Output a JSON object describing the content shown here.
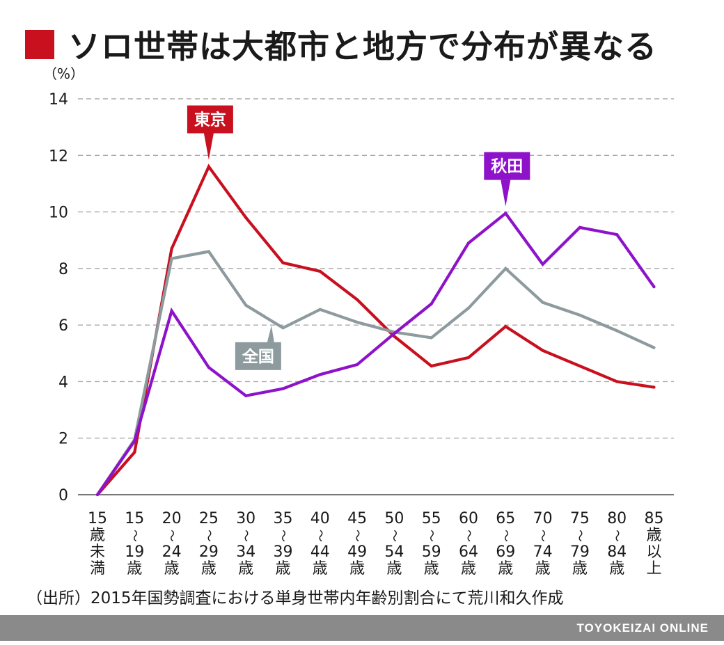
{
  "header": {
    "title": "ソロ世帯は大都市と地方で分布が異なる",
    "accent_color": "#c8101e"
  },
  "chart_data": {
    "type": "line",
    "ylabel": "（%）",
    "ylim": [
      0,
      14
    ],
    "yticks": [
      "0",
      "2",
      "4",
      "6",
      "8",
      "10",
      "12",
      "14"
    ],
    "grid": "horizontal-dashed",
    "categories": [
      [
        "15",
        "歳",
        "未",
        "満"
      ],
      [
        "15",
        "〜",
        "19",
        "歳"
      ],
      [
        "20",
        "〜",
        "24",
        "歳"
      ],
      [
        "25",
        "〜",
        "29",
        "歳"
      ],
      [
        "30",
        "〜",
        "34",
        "歳"
      ],
      [
        "35",
        "〜",
        "39",
        "歳"
      ],
      [
        "40",
        "〜",
        "44",
        "歳"
      ],
      [
        "45",
        "〜",
        "49",
        "歳"
      ],
      [
        "50",
        "〜",
        "54",
        "歳"
      ],
      [
        "55",
        "〜",
        "59",
        "歳"
      ],
      [
        "60",
        "〜",
        "64",
        "歳"
      ],
      [
        "65",
        "〜",
        "69",
        "歳"
      ],
      [
        "70",
        "〜",
        "74",
        "歳"
      ],
      [
        "75",
        "〜",
        "79",
        "歳"
      ],
      [
        "80",
        "〜",
        "84",
        "歳"
      ],
      [
        "85",
        "歳",
        "以",
        "上"
      ]
    ],
    "series": [
      {
        "key": "tokyo",
        "name": "東京",
        "color": "#c8101e",
        "values": [
          0,
          1.5,
          8.7,
          11.6,
          9.8,
          8.2,
          7.9,
          6.9,
          5.6,
          4.55,
          4.85,
          5.95,
          5.1,
          4.55,
          4.0,
          3.8
        ],
        "label_anchor_index": 3,
        "label_side": "above"
      },
      {
        "key": "zenkoku",
        "name": "全国",
        "color": "#8d9a9e",
        "values": [
          0,
          1.95,
          8.35,
          8.6,
          6.7,
          5.9,
          6.55,
          6.1,
          5.75,
          5.55,
          6.6,
          8.0,
          6.8,
          6.35,
          5.8,
          5.2
        ],
        "label_anchor_index": 4.65,
        "label_side": "below"
      },
      {
        "key": "akita",
        "name": "秋田",
        "color": "#8d12c9",
        "values": [
          0,
          1.9,
          6.5,
          4.5,
          3.5,
          3.75,
          4.25,
          4.6,
          5.7,
          6.75,
          8.9,
          9.95,
          8.15,
          9.45,
          9.2,
          7.35
        ],
        "label_anchor_index": 11,
        "label_side": "above"
      }
    ]
  },
  "footer": {
    "source": "（出所）2015年国勢調査における単身世帯内年齢別割合にて荒川和久作成",
    "brand": "TOYOKEIZAI ONLINE",
    "bar_color": "#8a8a8a"
  }
}
